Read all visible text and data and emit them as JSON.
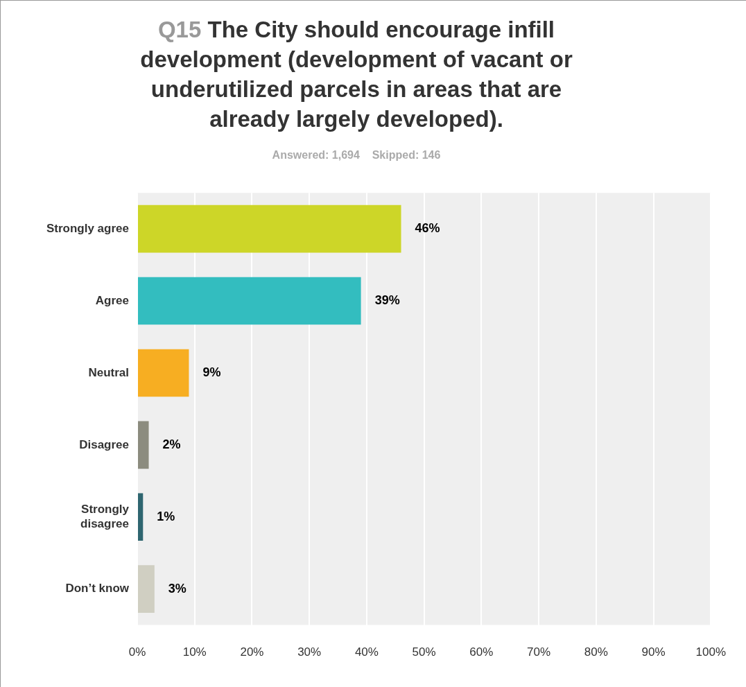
{
  "chart_data": {
    "type": "bar",
    "orientation": "horizontal",
    "title": "Q15 The City should encourage infill development (development of vacant or underutilized parcels in areas that are already largely developed).",
    "subtitle": "Answered: 1,694    Skipped: 146",
    "categories": [
      "Strongly agree",
      "Agree",
      "Neutral",
      "Disagree",
      "Strongly disagree",
      "Don’t know"
    ],
    "values": [
      46,
      39,
      9,
      2,
      1,
      3
    ],
    "colors": [
      "#cdd628",
      "#33bdbf",
      "#f7ae22",
      "#8c8c7f",
      "#2f6670",
      "#d0cfc2"
    ],
    "value_labels": [
      "46%",
      "39%",
      "9%",
      "2%",
      "1%",
      "3%"
    ],
    "xlim": [
      0,
      100
    ],
    "xticks": [
      {
        "value": 0,
        "label": "0%"
      },
      {
        "value": 10,
        "label": "10%"
      },
      {
        "value": 20,
        "label": "20%"
      },
      {
        "value": 30,
        "label": "30%"
      },
      {
        "value": 40,
        "label": "40%"
      },
      {
        "value": 50,
        "label": "50%"
      },
      {
        "value": 60,
        "label": "60%"
      },
      {
        "value": 70,
        "label": "70%"
      },
      {
        "value": 80,
        "label": "80%"
      },
      {
        "value": 90,
        "label": "90%"
      },
      {
        "value": 100,
        "label": "100%"
      }
    ],
    "grid": "x",
    "legend": false
  }
}
